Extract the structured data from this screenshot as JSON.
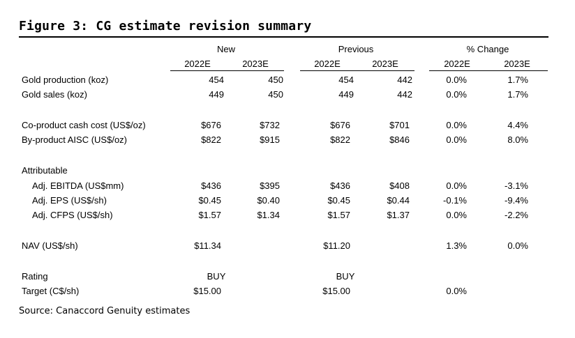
{
  "title": "Figure 3: CG estimate revision summary",
  "groups": {
    "new": "New",
    "previous": "Previous",
    "change": "% Change"
  },
  "years": {
    "y1": "2022E",
    "y2": "2023E"
  },
  "rows": {
    "gold_production": {
      "label": "Gold production (koz)",
      "n1": "454",
      "n2": "450",
      "p1": "454",
      "p2": "442",
      "c1": "0.0%",
      "c2": "1.7%"
    },
    "gold_sales": {
      "label": "Gold sales (koz)",
      "n1": "449",
      "n2": "450",
      "p1": "449",
      "p2": "442",
      "c1": "0.0%",
      "c2": "1.7%"
    },
    "coproduct_cash_cost": {
      "label": "Co-product cash cost (US$/oz)",
      "n1": "$676",
      "n2": "$732",
      "p1": "$676",
      "p2": "$701",
      "c1": "0.0%",
      "c2": "4.4%"
    },
    "byproduct_aisc": {
      "label": "By-product AISC (US$/oz)",
      "n1": "$822",
      "n2": "$915",
      "p1": "$822",
      "p2": "$846",
      "c1": "0.0%",
      "c2": "8.0%"
    },
    "attributable": {
      "label": "Attributable"
    },
    "adj_ebitda": {
      "label": "Adj. EBITDA (US$mm)",
      "n1": "$436",
      "n2": "$395",
      "p1": "$436",
      "p2": "$408",
      "c1": "0.0%",
      "c2": "-3.1%"
    },
    "adj_eps": {
      "label": "Adj. EPS (US$/sh)",
      "n1": "$0.45",
      "n2": "$0.40",
      "p1": "$0.45",
      "p2": "$0.44",
      "c1": "-0.1%",
      "c2": "-9.4%"
    },
    "adj_cfps": {
      "label": "Adj. CFPS (US$/sh)",
      "n1": "$1.57",
      "n2": "$1.34",
      "p1": "$1.57",
      "p2": "$1.37",
      "c1": "0.0%",
      "c2": "-2.2%"
    },
    "nav": {
      "label": "NAV (US$/sh)",
      "n1": "$11.34",
      "p1": "$11.20",
      "c1": "1.3%",
      "c2": "0.0%"
    },
    "rating": {
      "label": "Rating",
      "n1": "BUY",
      "p1": "BUY"
    },
    "target": {
      "label": "Target (C$/sh)",
      "n1": "$15.00",
      "p1": "$15.00",
      "c1": "0.0%"
    }
  },
  "source": "Source: Canaccord Genuity estimates"
}
